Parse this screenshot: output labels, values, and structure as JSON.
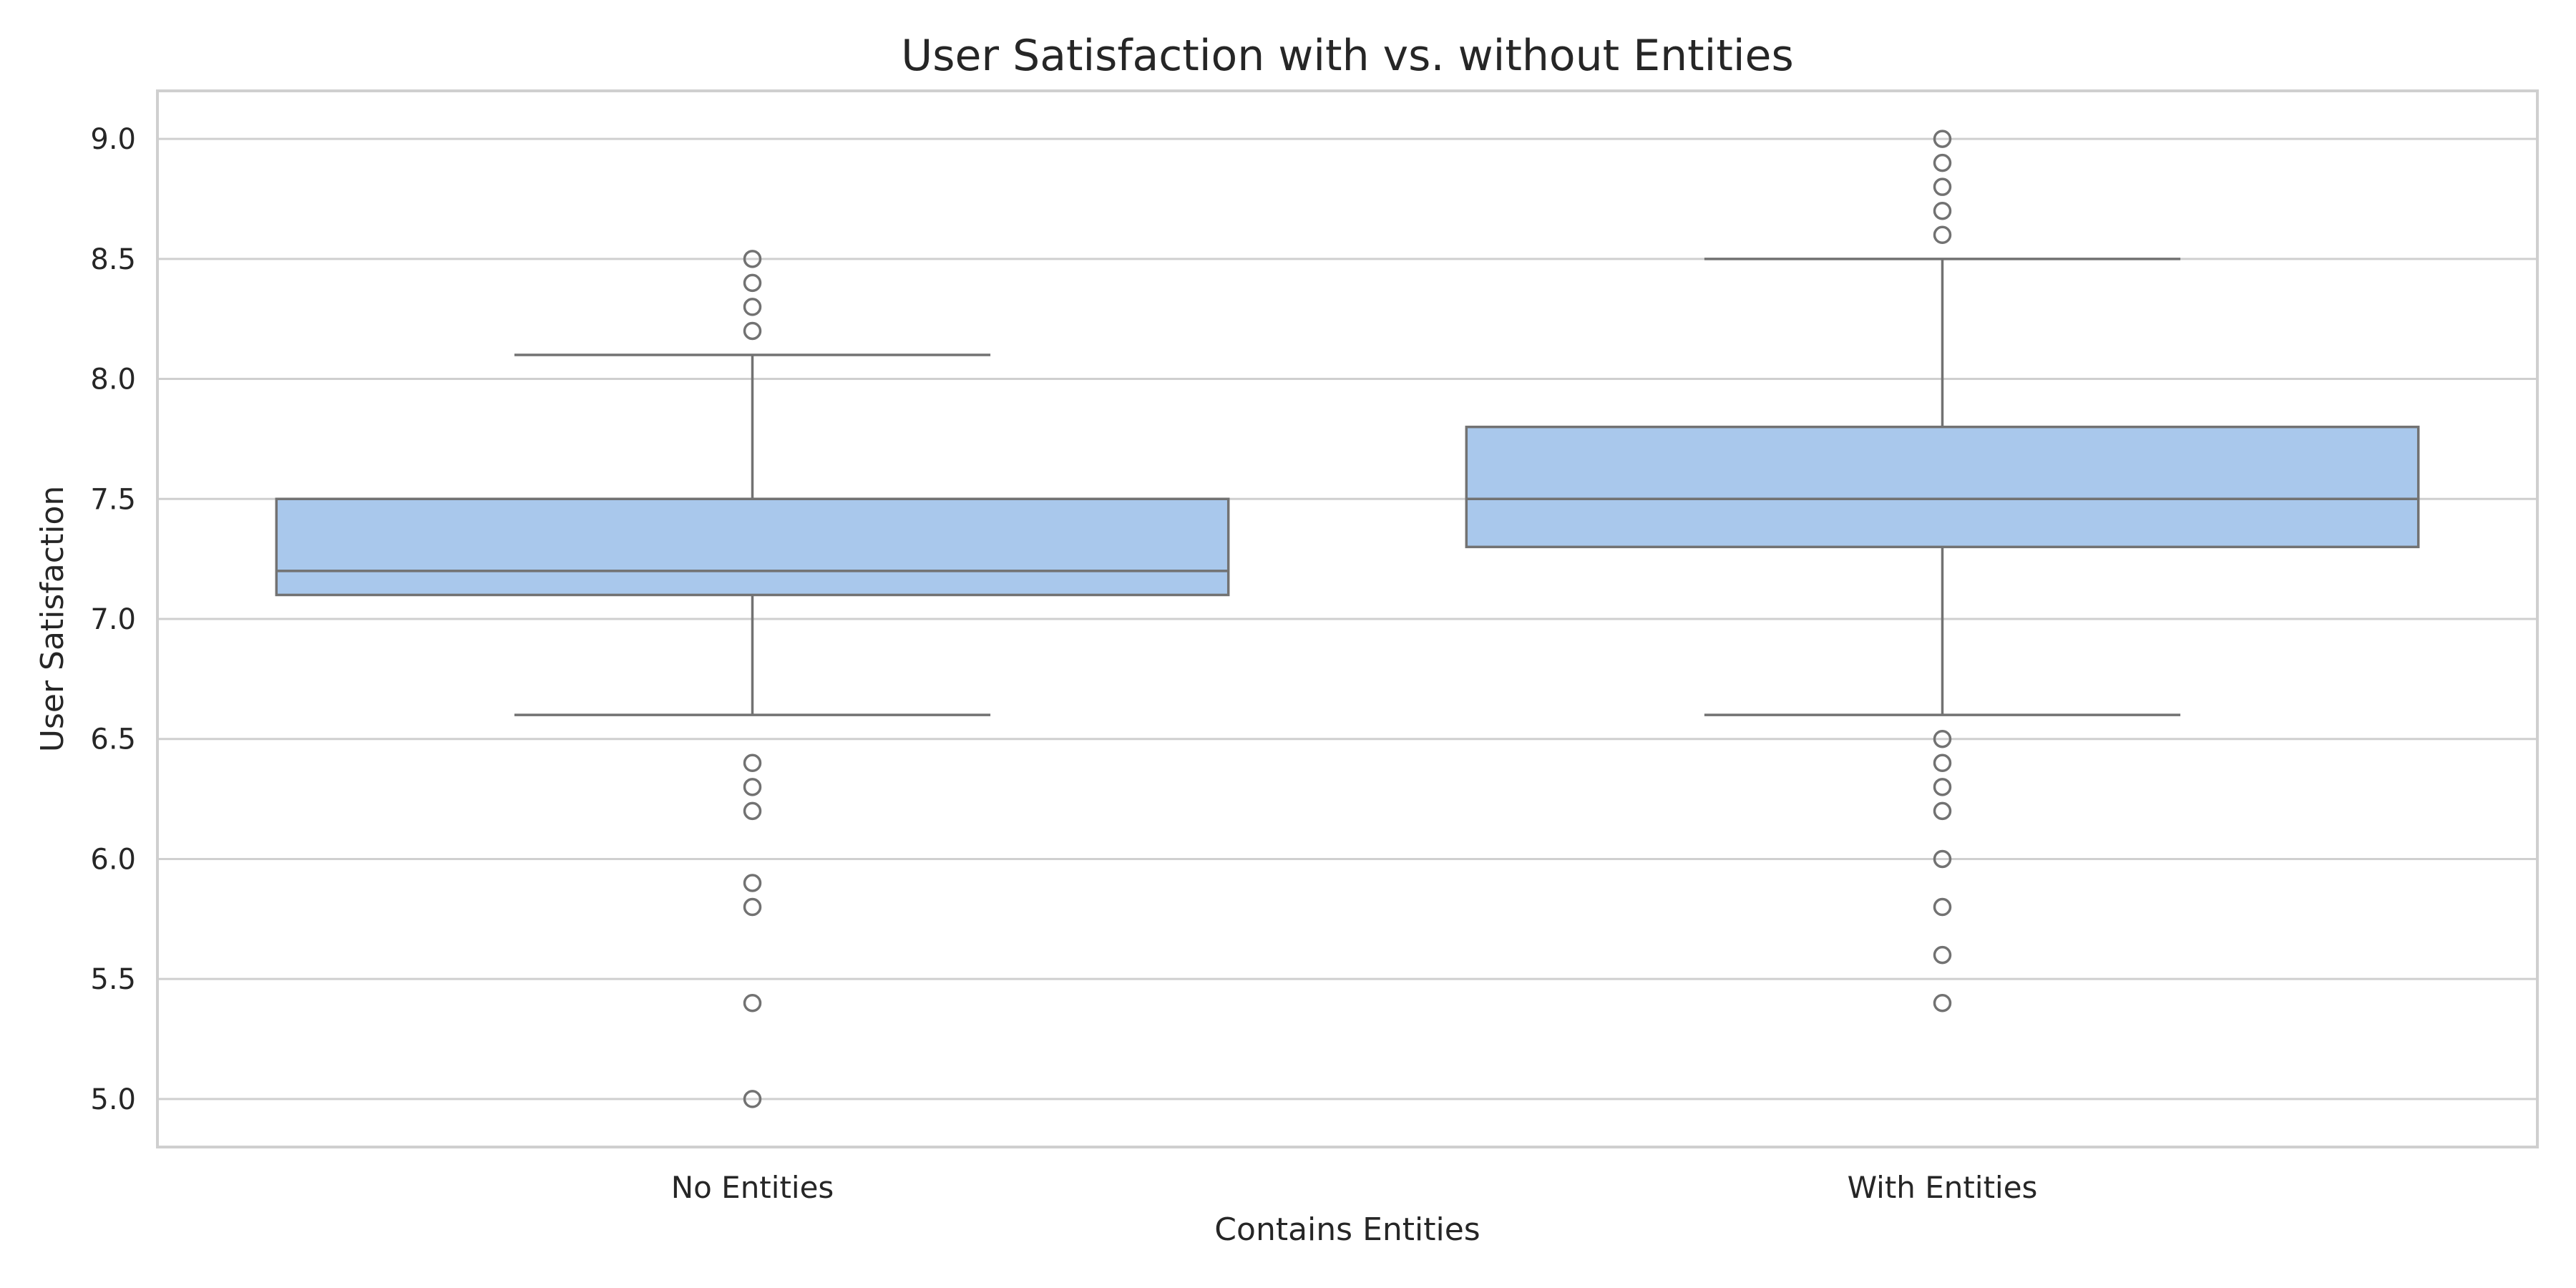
{
  "chart_data": {
    "type": "box",
    "title": "User Satisfaction with vs. without Entities",
    "xlabel": "Contains Entities",
    "ylabel": "User Satisfaction",
    "ylim": [
      4.8,
      9.2
    ],
    "yticks": [
      5.0,
      5.5,
      6.0,
      6.5,
      7.0,
      7.5,
      8.0,
      8.5,
      9.0
    ],
    "ytick_labels": [
      "5.0",
      "5.5",
      "6.0",
      "6.5",
      "7.0",
      "7.5",
      "8.0",
      "8.5",
      "9.0"
    ],
    "grid": true,
    "categories": [
      "No Entities",
      "With Entities"
    ],
    "boxes": [
      {
        "category": "No Entities",
        "whisker_low": 6.6,
        "q1": 7.1,
        "median": 7.2,
        "q3": 7.5,
        "whisker_high": 8.1,
        "outliers": [
          8.5,
          8.4,
          8.3,
          8.2,
          6.4,
          6.3,
          6.2,
          5.9,
          5.8,
          5.4,
          5.0
        ]
      },
      {
        "category": "With Entities",
        "whisker_low": 6.6,
        "q1": 7.3,
        "median": 7.5,
        "q3": 7.8,
        "whisker_high": 8.5,
        "outliers": [
          9.0,
          8.9,
          8.8,
          8.7,
          8.6,
          6.5,
          6.4,
          6.3,
          6.2,
          6.0,
          5.8,
          5.6,
          5.4
        ]
      }
    ],
    "colors": {
      "box_fill": "#a9c8ec",
      "line": "#727272",
      "grid": "#cfcfcf",
      "frame": "#cfcfcf"
    }
  }
}
